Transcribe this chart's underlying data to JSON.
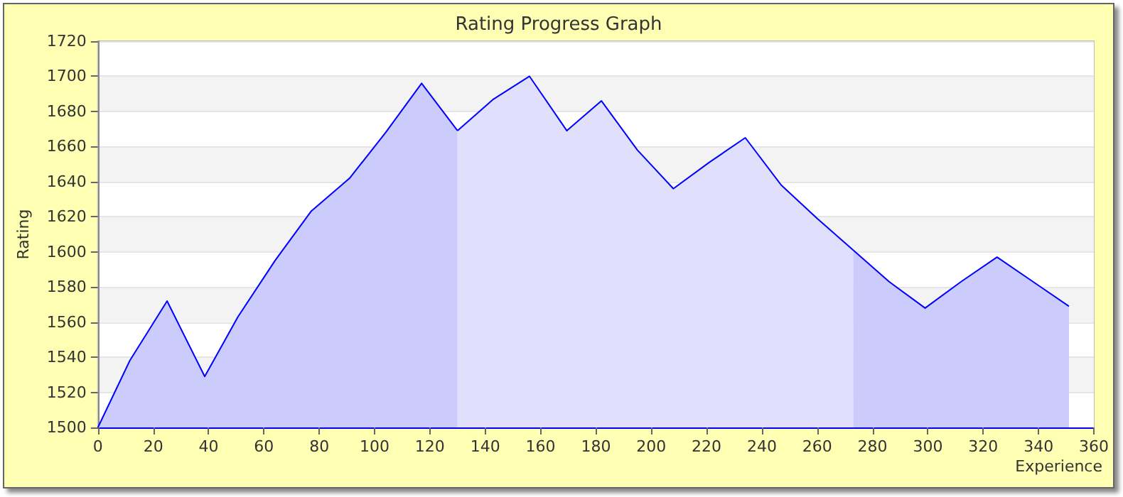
{
  "chart_data": {
    "type": "area",
    "title": "Rating Progress Graph",
    "xlabel": "Experience",
    "ylabel": "Rating",
    "series": [
      {
        "color": "#ccccfc",
        "x": [
          0,
          11.5,
          25,
          38.6,
          50.6,
          64,
          77,
          91,
          104,
          117,
          130
        ],
        "values": [
          1500,
          1538,
          1572,
          1529,
          1563,
          1595,
          1623,
          1642,
          1668,
          1696,
          1669
        ]
      },
      {
        "color": "#e0e0fc",
        "x": [
          130,
          143,
          156,
          169.5,
          182,
          195,
          208,
          221,
          234,
          247,
          260,
          273
        ],
        "values": [
          1669,
          1687,
          1700,
          1669,
          1686,
          1658,
          1636,
          1651,
          1665,
          1638,
          1619,
          1601
        ]
      },
      {
        "color": "#ccccfc",
        "x": [
          273,
          286,
          299,
          312,
          325,
          338,
          351
        ],
        "values": [
          1601,
          1583,
          1568,
          1583,
          1597,
          1583,
          1569
        ]
      }
    ],
    "xlim": [
      0,
      360
    ],
    "xticks": [
      0,
      20,
      40,
      60,
      80,
      100,
      120,
      140,
      160,
      180,
      200,
      220,
      240,
      260,
      280,
      300,
      320,
      340,
      360
    ],
    "ylim": [
      1500,
      1720
    ],
    "yticks": [
      1500,
      1520,
      1540,
      1560,
      1580,
      1600,
      1620,
      1640,
      1660,
      1680,
      1700,
      1720
    ],
    "grid": "y",
    "marker": "none",
    "line_style": "solid"
  }
}
